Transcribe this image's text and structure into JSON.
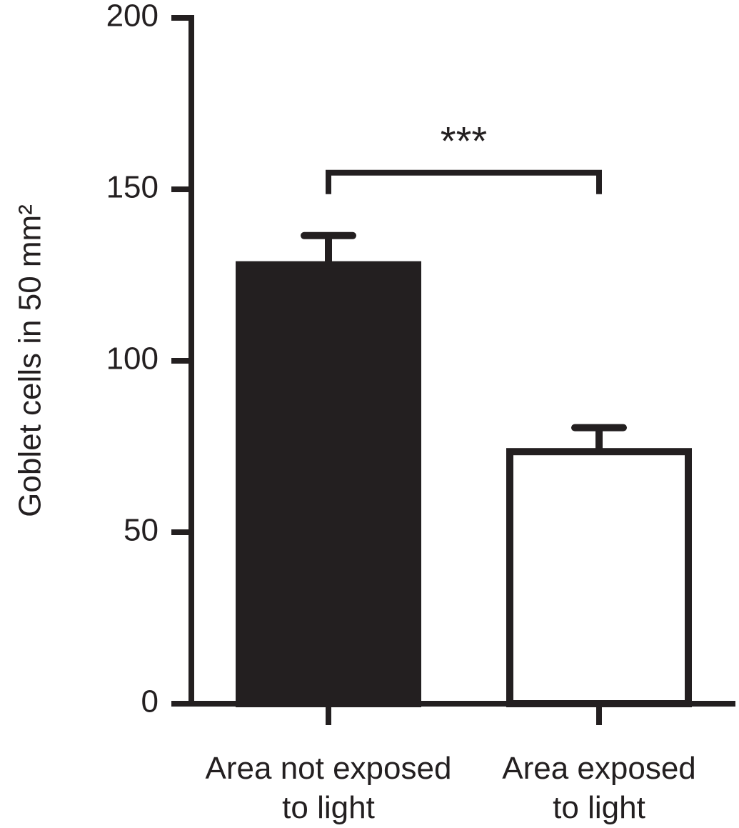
{
  "chart_data": {
    "type": "bar",
    "y_label": "Goblet cells in 50 mm²",
    "categories": [
      "Area not exposed\nto light",
      "Area exposed\nto light"
    ],
    "values": [
      128,
      73.5
    ],
    "errors": [
      8.5,
      7
    ],
    "colors": [
      "#231f20",
      "#ffffff"
    ],
    "edgecolor": "#231f20",
    "ylim": [
      0,
      200
    ],
    "yticks": [
      0,
      50,
      100,
      150,
      200
    ],
    "annotation": "***"
  }
}
